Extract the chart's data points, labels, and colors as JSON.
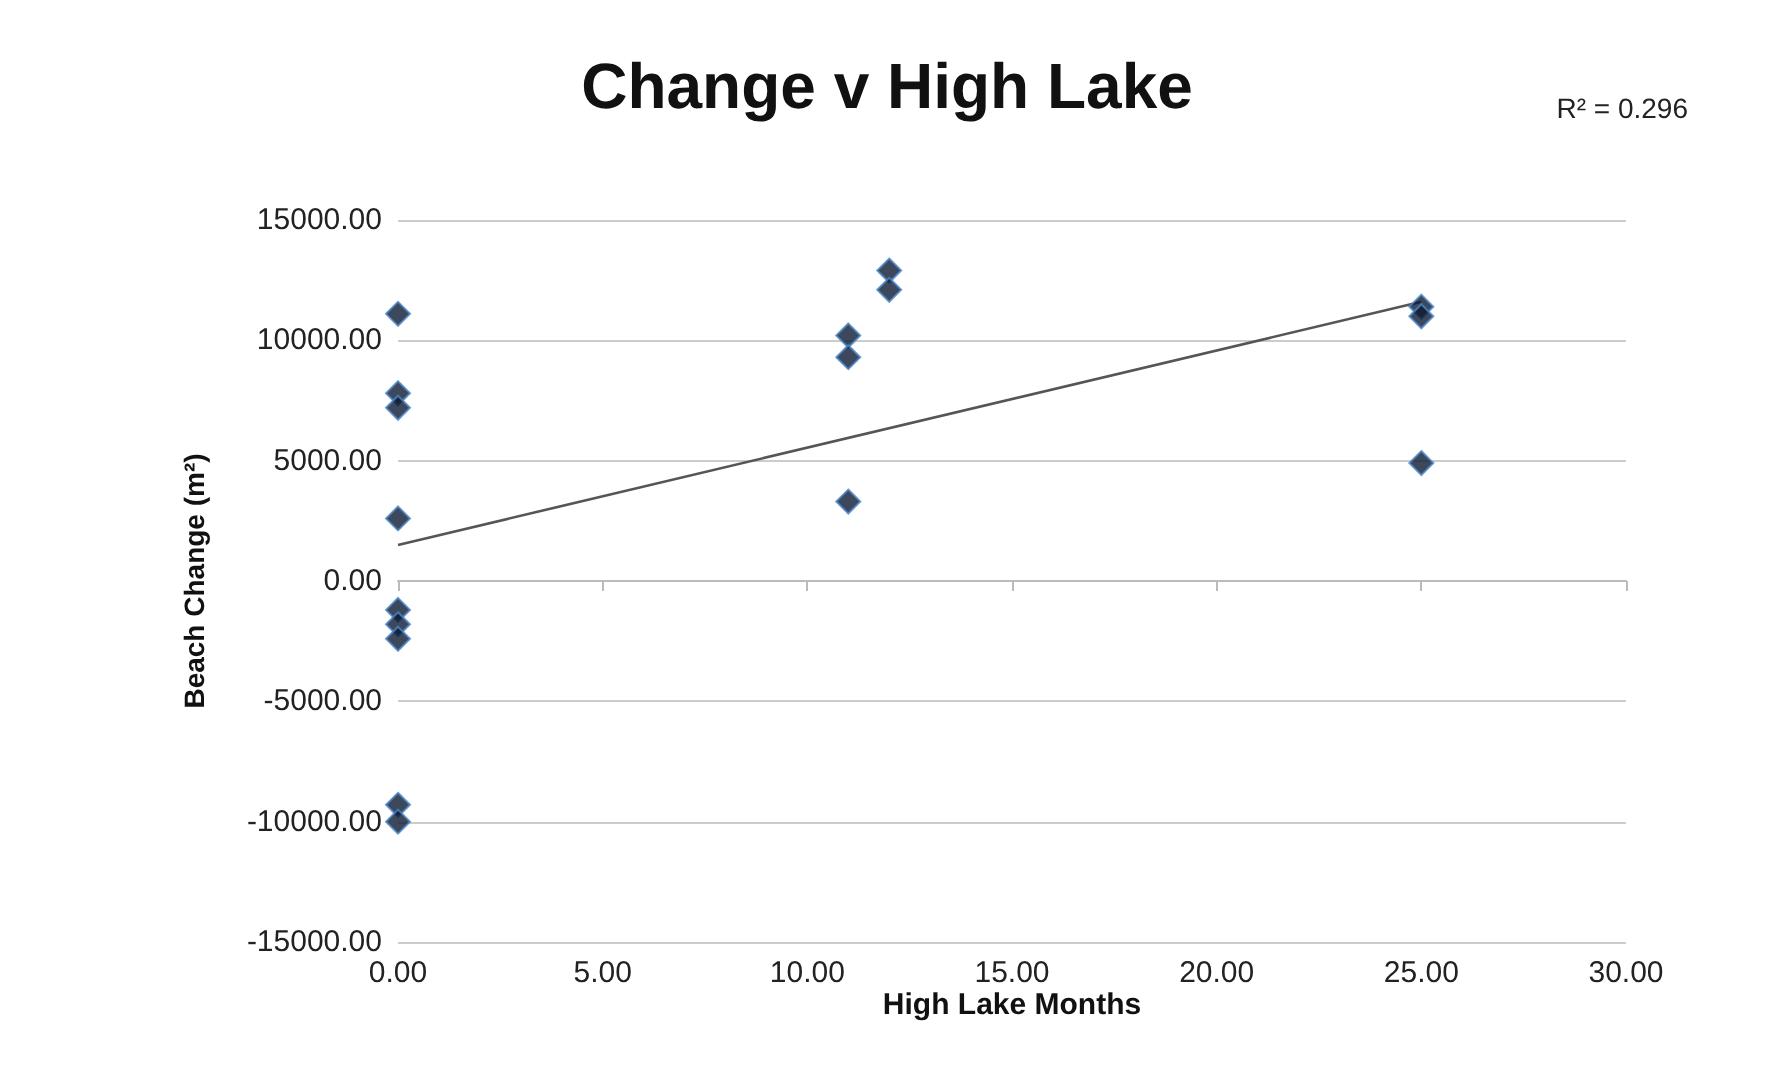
{
  "chart_data": {
    "type": "scatter",
    "title": "Change v High Lake",
    "xlabel": "High Lake Months",
    "ylabel": "Beach Change (m²)",
    "annotations": [
      "R² = 0.296"
    ],
    "series": [
      {
        "marker": "diamond",
        "color": "#0d1a33",
        "x": [
          0,
          0,
          0,
          0,
          0,
          0,
          0,
          0,
          0,
          11,
          11,
          11,
          12,
          12,
          25,
          25,
          25
        ],
        "values": [
          11100,
          7800,
          7200,
          2600,
          -1200,
          -1800,
          -2400,
          -9300,
          -10000,
          10200,
          9300,
          3300,
          12900,
          12100,
          11400,
          11000,
          4900
        ]
      },
      {
        "type": "line",
        "marker": "none",
        "color": "#555555",
        "x": [
          0,
          25
        ],
        "values": [
          1500,
          11600
        ]
      }
    ],
    "xlim": [
      0,
      30
    ],
    "xticks": [
      {
        "value": 0,
        "label": "0.00"
      },
      {
        "value": 5,
        "label": "5.00"
      },
      {
        "value": 10,
        "label": "10.00"
      },
      {
        "value": 15,
        "label": "15.00"
      },
      {
        "value": 20,
        "label": "20.00"
      },
      {
        "value": 25,
        "label": "25.00"
      },
      {
        "value": 30,
        "label": "30.00"
      }
    ],
    "ylim": [
      -15000,
      15000
    ],
    "yticks": [
      {
        "value": -15000,
        "label": "-15000.00"
      },
      {
        "value": -10000,
        "label": "-10000.00"
      },
      {
        "value": -5000,
        "label": "-5000.00"
      },
      {
        "value": 0,
        "label": "0.00"
      },
      {
        "value": 5000,
        "label": "5000.00"
      },
      {
        "value": 10000,
        "label": "10000.00"
      },
      {
        "value": 15000,
        "label": "15000.00"
      }
    ],
    "grid": "y"
  }
}
